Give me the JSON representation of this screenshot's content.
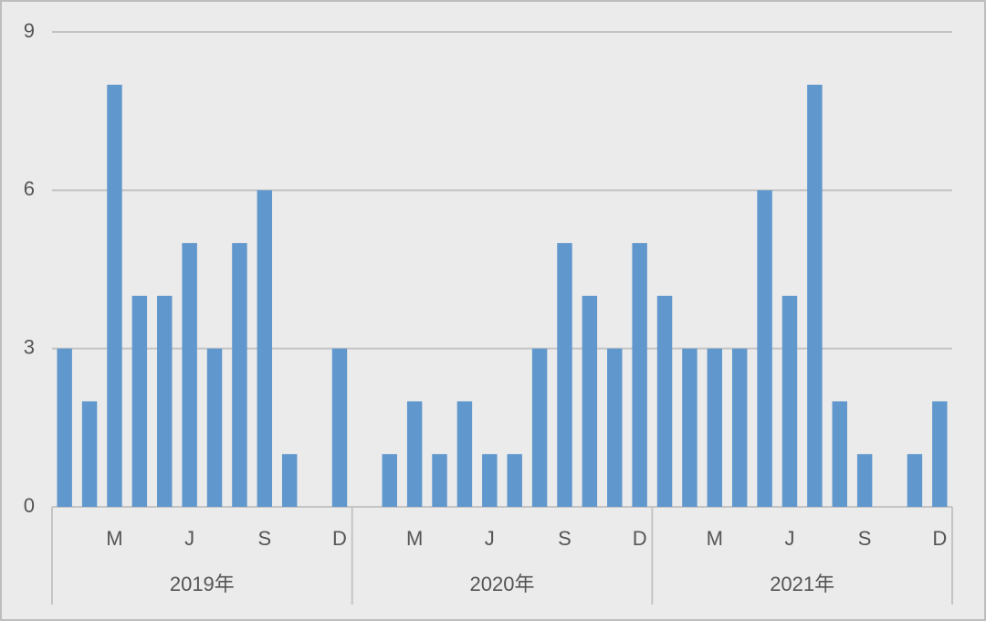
{
  "chart_data": {
    "type": "bar",
    "categories": [
      null,
      null,
      "M",
      null,
      null,
      "J",
      null,
      null,
      "S",
      null,
      null,
      "D",
      null,
      null,
      "M",
      null,
      null,
      "J",
      null,
      null,
      "S",
      null,
      null,
      "D",
      null,
      null,
      "M",
      null,
      null,
      "J",
      null,
      null,
      "S",
      null,
      null,
      "D"
    ],
    "groups": [
      "2019年",
      "2020年",
      "2021年"
    ],
    "values": [
      3,
      2,
      8,
      4,
      4,
      5,
      3,
      5,
      6,
      1,
      0,
      3,
      0,
      1,
      2,
      1,
      2,
      1,
      1,
      3,
      5,
      4,
      3,
      5,
      4,
      3,
      3,
      3,
      6,
      4,
      8,
      2,
      1,
      0,
      1,
      2
    ],
    "color": "#6097cc",
    "ylim": [
      0,
      9
    ],
    "yticks": [
      0,
      3,
      6,
      9
    ],
    "grid": true
  }
}
